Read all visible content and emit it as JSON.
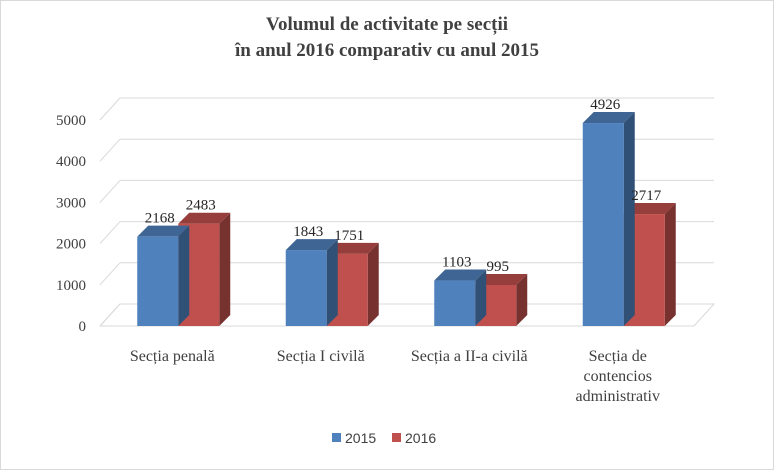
{
  "chart_data": {
    "type": "bar",
    "title": "Volumul de activitate pe secții",
    "subtitle": "în anul 2016 comparativ cu anul 2015",
    "categories": [
      [
        "Secția penală"
      ],
      [
        "Secția I civilă"
      ],
      [
        "Secția a II-a civilă"
      ],
      [
        "Secția de",
        "contencios",
        "administrativ"
      ]
    ],
    "series": [
      {
        "name": "2015",
        "values": [
          2168,
          1843,
          1103,
          4926
        ],
        "color": "#4F81BD"
      },
      {
        "name": "2016",
        "values": [
          2483,
          1751,
          995,
          2717
        ],
        "color": "#C0504D"
      }
    ],
    "ylim": [
      0,
      5000
    ],
    "yticks": [
      "0",
      "1000",
      "2000",
      "3000",
      "4000",
      "5000"
    ],
    "grid": true,
    "legend": "bottom",
    "style": "3d-clustered-column"
  }
}
